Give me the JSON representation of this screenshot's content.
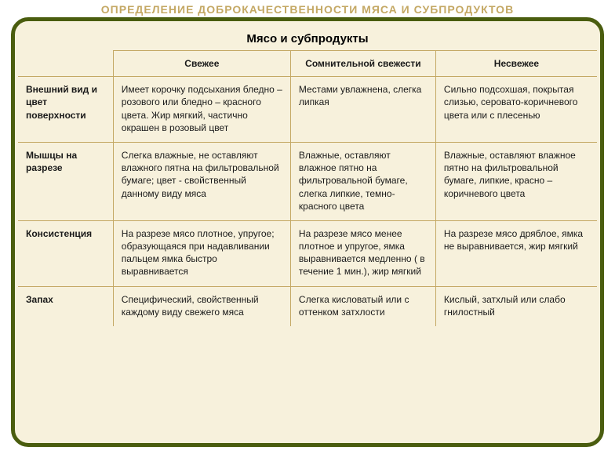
{
  "title": "ОПРЕДЕЛЕНИЕ ДОБРОКАЧЕСТВЕННОСТИ МЯСА И СУБПРОДУКТОВ",
  "super_header": "Мясо и субпродукты",
  "cols": {
    "blank": "",
    "fresh": "Свежее",
    "doubt": "Сомнительной свежести",
    "stale": "Несвежее"
  },
  "rows": {
    "r1": {
      "label": "Внешний вид и цвет поверхности",
      "fresh": "Имеет корочку подсыхания бледно – розового или бледно – красного цвета. Жир мягкий, частично окрашен в розовый цвет",
      "doubt": "Местами увлажнена, слегка липкая",
      "stale": "Сильно подсохшая, покрытая слизью, серовато-коричневого цвета или с плесенью"
    },
    "r2": {
      "label": "Мышцы на разрезе",
      "fresh": "Слегка влажные, не оставляют влажного пятна на фильтровальной бумаге; цвет - свойственный данному виду мяса",
      "doubt": "Влажные, оставляют влажное пятно на фильтровальной бумаге, слегка липкие, темно-красного цвета",
      "stale": "Влажные, оставляют влажное пятно на фильтровальной бумаге, липкие, красно – коричневого цвета"
    },
    "r3": {
      "label": "Консистенция",
      "fresh": "На разрезе мясо плотное, упругое; образующаяся при надавливании пальцем ямка быстро выравнивается",
      "doubt": "На разрезе мясо менее плотное и упругое, ямка выравнивается медленно ( в течение 1 мин.), жир мягкий",
      "stale": "На разрезе мясо дряблое, ямка не выравнивается, жир мягкий"
    },
    "r4": {
      "label": "Запах",
      "fresh": "Специфический, свойственный каждому виду свежего мяса",
      "doubt": "Слегка кисловатый или с оттенком затхлости",
      "stale": "Кислый, затхлый или слабо гнилостный"
    }
  },
  "style": {
    "title_color": "#c4a864",
    "border_color": "#4a5d0f",
    "background": "#f7f1dc",
    "rule_color": "#c4a864",
    "text_color": "#1a1a1a",
    "border_radius": 22,
    "border_width": 5,
    "title_fontsize": 14,
    "header_fontsize": 15,
    "cell_fontsize": 12
  }
}
